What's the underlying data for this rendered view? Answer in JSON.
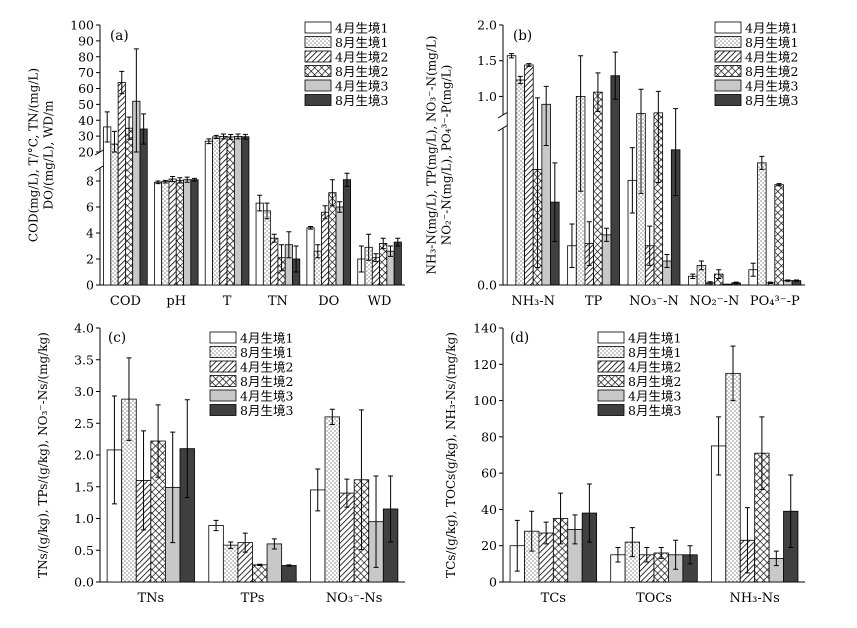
{
  "chart_data": [
    {
      "id": "a",
      "type": "bar",
      "panel_label": "(a)",
      "ylabel": "COD(mg/L), T/°C, TN/(mg/L)\nDO/(mg/L), WD/m",
      "categories": [
        "COD",
        "pH",
        "T",
        "TN",
        "DO",
        "WD"
      ],
      "broken_axis": true,
      "lower_range": [
        0,
        9
      ],
      "upper_range": [
        20,
        100
      ],
      "lower_ticks": [
        0,
        2,
        4,
        6,
        8
      ],
      "upper_ticks": [
        20,
        30,
        40,
        50,
        60,
        70,
        80,
        90,
        100
      ],
      "series": [
        {
          "name": "4月生境1",
          "values": [
            35.8,
            7.9,
            26.8,
            6.3,
            4.4,
            2.0
          ],
          "errors": [
            9.5,
            0.1,
            1.5,
            0.6,
            0.1,
            1.0
          ]
        },
        {
          "name": "8月生境1",
          "values": [
            25.0,
            7.95,
            29.5,
            5.7,
            2.6,
            2.9
          ],
          "errors": [
            8.0,
            0.1,
            1.0,
            0.6,
            0.5,
            1.0
          ]
        },
        {
          "name": "4月生境2",
          "values": [
            63.8,
            8.15,
            29.8,
            3.6,
            5.6,
            2.1
          ],
          "errors": [
            7.0,
            0.2,
            1.5,
            0.3,
            0.5,
            0.3
          ]
        },
        {
          "name": "8月生境2",
          "values": [
            35.0,
            8.05,
            29.5,
            2.1,
            7.1,
            3.2
          ],
          "errors": [
            7.0,
            0.2,
            1.5,
            1.0,
            1.0,
            0.4
          ]
        },
        {
          "name": "4月生境3",
          "values": [
            52.0,
            8.1,
            29.8,
            3.1,
            6.0,
            2.6
          ],
          "errors": [
            33.0,
            0.2,
            1.5,
            1.0,
            0.4,
            0.4
          ]
        },
        {
          "name": "8月生境3",
          "values": [
            34.5,
            8.1,
            29.6,
            2.0,
            8.1,
            3.3
          ],
          "errors": [
            9.5,
            0.1,
            1.5,
            1.0,
            0.5,
            0.3
          ]
        }
      ]
    },
    {
      "id": "b",
      "type": "bar",
      "panel_label": "(b)",
      "ylabel": "NH₃-N(mg/L), TP(mg/L), NO₃⁻-N(mg/L)\nNO₂⁻-N(mg/L), PO₄³⁻-P(mg/L)",
      "categories": [
        "NH₃-N",
        "TP",
        "NO₃⁻-N",
        "NO₂⁻-N",
        "PO₄³⁻-P"
      ],
      "broken_axis": true,
      "lower_range": [
        0,
        0.72
      ],
      "upper_range": [
        0.74,
        2.0
      ],
      "lower_ticks": [
        0
      ],
      "upper_ticks": [
        1.0,
        1.5,
        2.0
      ],
      "series": [
        {
          "name": "4月生境1",
          "values": [
            1.57,
            0.18,
            0.48,
            0.04,
            0.07
          ],
          "errors": [
            0.03,
            0.1,
            0.15,
            0.01,
            0.03
          ]
        },
        {
          "name": "8月生境1",
          "values": [
            1.23,
            1.0,
            0.76,
            0.09,
            0.56
          ],
          "errors": [
            0.05,
            0.57,
            0.34,
            0.02,
            0.03
          ]
        },
        {
          "name": "4月生境2",
          "values": [
            1.44,
            0.19,
            0.18,
            0.01,
            0.01
          ],
          "errors": [
            0.02,
            0.1,
            0.09,
            0.005,
            0.003
          ]
        },
        {
          "name": "8月生境2",
          "values": [
            0.53,
            1.06,
            0.77,
            0.05,
            0.46
          ],
          "errors": [
            0.45,
            0.27,
            0.3,
            0.02,
            0.005
          ]
        },
        {
          "name": "4月生境3",
          "values": [
            0.89,
            0.23,
            0.11,
            0.0,
            0.02
          ],
          "errors": [
            0.25,
            0.03,
            0.03,
            0.003,
            0.003
          ]
        },
        {
          "name": "8月生境3",
          "values": [
            0.38,
            1.29,
            0.62,
            0.01,
            0.02
          ],
          "errors": [
            0.18,
            0.33,
            0.21,
            0.003,
            0.003
          ]
        }
      ]
    },
    {
      "id": "c",
      "type": "bar",
      "panel_label": "(c)",
      "ylabel": "TNs/(g/kg), TPs/(g/kg), NO₃⁻-Ns/(mg/kg)",
      "categories": [
        "TNs",
        "TPs",
        "NO₃⁻-Ns"
      ],
      "ylim": [
        0,
        4.0
      ],
      "ticks": [
        0,
        0.5,
        1.0,
        1.5,
        2.0,
        2.5,
        3.0,
        3.5,
        4.0
      ],
      "series": [
        {
          "name": "4月生境1",
          "values": [
            2.08,
            0.89,
            1.45
          ],
          "errors": [
            0.85,
            0.08,
            0.33
          ]
        },
        {
          "name": "8月生境1",
          "values": [
            2.88,
            0.58,
            2.6
          ],
          "errors": [
            0.65,
            0.05,
            0.12
          ]
        },
        {
          "name": "4月生境2",
          "values": [
            1.6,
            0.62,
            1.4
          ],
          "errors": [
            0.78,
            0.15,
            0.22
          ]
        },
        {
          "name": "8月生境2",
          "values": [
            2.22,
            0.27,
            1.61
          ],
          "errors": [
            0.57,
            0.01,
            1.1
          ]
        },
        {
          "name": "4月生境3",
          "values": [
            1.49,
            0.6,
            0.95
          ],
          "errors": [
            0.87,
            0.08,
            0.72
          ]
        },
        {
          "name": "8月生境3",
          "values": [
            2.1,
            0.26,
            1.15
          ],
          "errors": [
            0.77,
            0.01,
            0.52
          ]
        }
      ]
    },
    {
      "id": "d",
      "type": "bar",
      "panel_label": "(d)",
      "ylabel": "TCs/(g/kg), TOCs(g/kg), NH₃-Ns/(mg/kg)",
      "categories": [
        "TCs",
        "TOCs",
        "NH₃-Ns"
      ],
      "ylim": [
        0,
        140
      ],
      "ticks": [
        0,
        20,
        40,
        60,
        80,
        100,
        120,
        140
      ],
      "series": [
        {
          "name": "4月生境1",
          "values": [
            20,
            15,
            75
          ],
          "errors": [
            14,
            4,
            16
          ]
        },
        {
          "name": "8月生境1",
          "values": [
            28,
            22,
            115
          ],
          "errors": [
            11,
            8,
            15
          ]
        },
        {
          "name": "4月生境2",
          "values": [
            27,
            15,
            23
          ],
          "errors": [
            6,
            4,
            18
          ]
        },
        {
          "name": "8月生境2",
          "values": [
            35,
            16,
            71
          ],
          "errors": [
            14,
            3,
            20
          ]
        },
        {
          "name": "4月生境3",
          "values": [
            29,
            15,
            13
          ],
          "errors": [
            8,
            8,
            4
          ]
        },
        {
          "name": "8月生境3",
          "values": [
            38,
            15,
            39
          ],
          "errors": [
            16,
            5,
            20
          ]
        }
      ]
    }
  ],
  "styles": {
    "series_patterns": [
      "white",
      "dots",
      "diag",
      "cross",
      "lightgray",
      "darkgray"
    ],
    "bar_stroke": "#000000",
    "light_gray": "#c8c8c8",
    "dark_gray": "#404040"
  }
}
